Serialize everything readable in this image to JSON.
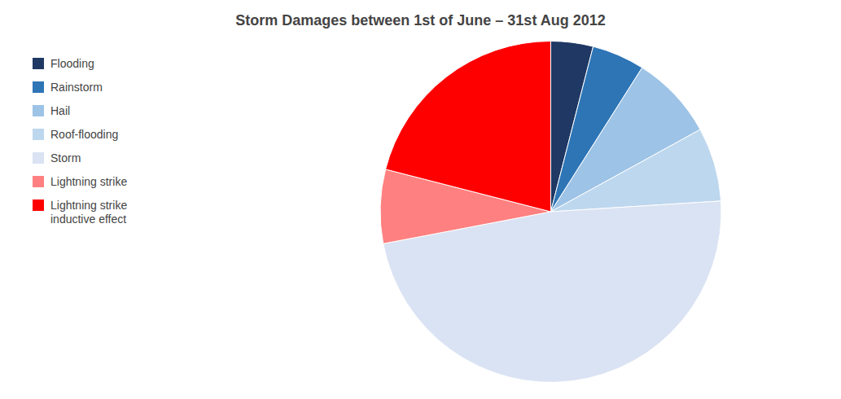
{
  "chart_data": {
    "type": "pie",
    "title": "Storm Damages between 1st of June – 31st Aug 2012",
    "categories": [
      "Flooding",
      "Rainstorm",
      "Hail",
      "Roof-flooding",
      "Storm",
      "Lightning strike",
      "Lightning strike\ninductive effect"
    ],
    "values": [
      4,
      5,
      8,
      7,
      48,
      7,
      21
    ],
    "colors": [
      "#1f3864",
      "#2e75b6",
      "#9dc3e6",
      "#bdd7ee",
      "#dae3f3",
      "#ff8080",
      "#ff0000"
    ],
    "legend": "left"
  }
}
